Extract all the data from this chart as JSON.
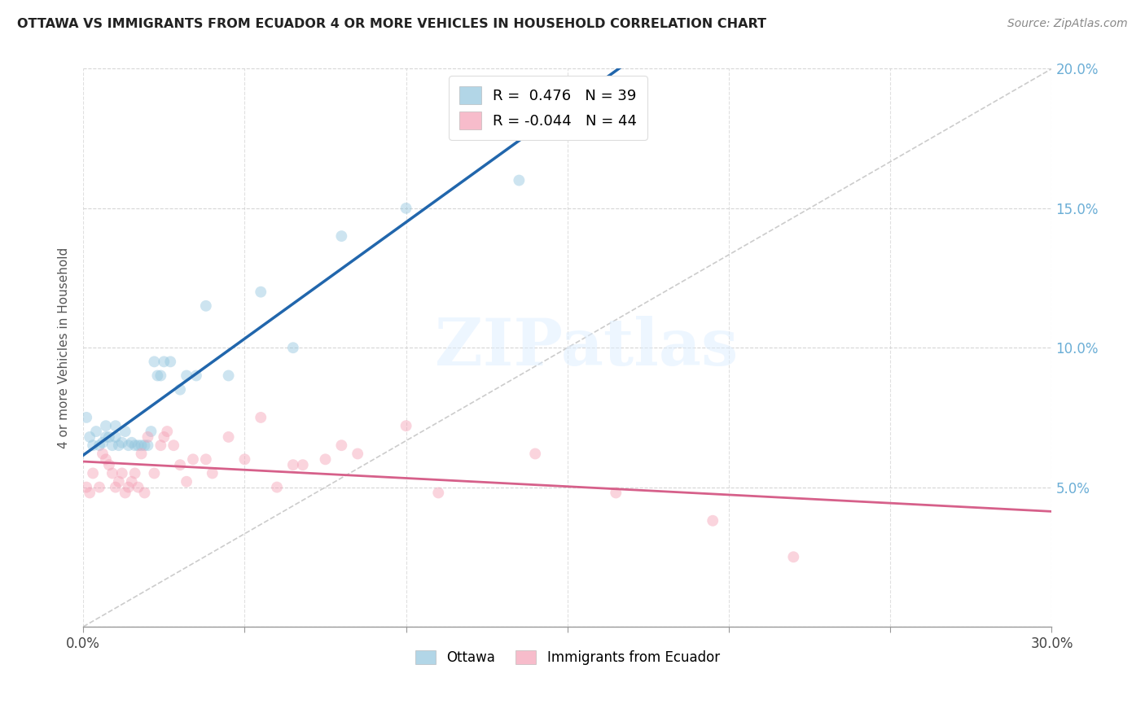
{
  "title": "OTTAWA VS IMMIGRANTS FROM ECUADOR 4 OR MORE VEHICLES IN HOUSEHOLD CORRELATION CHART",
  "source": "Source: ZipAtlas.com",
  "ylabel": "4 or more Vehicles in Household",
  "xlim": [
    0.0,
    0.3
  ],
  "ylim": [
    0.0,
    0.2
  ],
  "xtick_positions": [
    0.0,
    0.05,
    0.1,
    0.15,
    0.2,
    0.25,
    0.3
  ],
  "xtick_labels_sparse": [
    "0.0%",
    "",
    "",
    "",
    "",
    "",
    "30.0%"
  ],
  "ytick_positions": [
    0.0,
    0.05,
    0.1,
    0.15,
    0.2
  ],
  "ytick_labels_right": [
    "",
    "5.0%",
    "10.0%",
    "15.0%",
    "20.0%"
  ],
  "legend_entries": [
    {
      "label": "Ottawa",
      "color": "#92c5de",
      "R": "0.476",
      "N": "39"
    },
    {
      "label": "Immigrants from Ecuador",
      "color": "#f4a0b5",
      "R": "-0.044",
      "N": "44"
    }
  ],
  "ottawa_x": [
    0.001,
    0.002,
    0.003,
    0.004,
    0.005,
    0.006,
    0.007,
    0.007,
    0.008,
    0.009,
    0.01,
    0.01,
    0.011,
    0.012,
    0.013,
    0.014,
    0.015,
    0.016,
    0.017,
    0.018,
    0.019,
    0.02,
    0.021,
    0.022,
    0.023,
    0.024,
    0.025,
    0.027,
    0.03,
    0.032,
    0.035,
    0.038,
    0.045,
    0.055,
    0.065,
    0.08,
    0.1,
    0.135,
    0.155
  ],
  "ottawa_y": [
    0.075,
    0.068,
    0.065,
    0.07,
    0.065,
    0.066,
    0.068,
    0.072,
    0.068,
    0.065,
    0.068,
    0.072,
    0.065,
    0.066,
    0.07,
    0.065,
    0.066,
    0.065,
    0.065,
    0.065,
    0.065,
    0.065,
    0.07,
    0.095,
    0.09,
    0.09,
    0.095,
    0.095,
    0.085,
    0.09,
    0.09,
    0.115,
    0.09,
    0.12,
    0.1,
    0.14,
    0.15,
    0.16,
    0.195
  ],
  "ecuador_x": [
    0.001,
    0.002,
    0.003,
    0.005,
    0.006,
    0.007,
    0.008,
    0.009,
    0.01,
    0.011,
    0.012,
    0.013,
    0.014,
    0.015,
    0.016,
    0.017,
    0.018,
    0.019,
    0.02,
    0.022,
    0.024,
    0.025,
    0.026,
    0.028,
    0.03,
    0.032,
    0.034,
    0.038,
    0.04,
    0.045,
    0.05,
    0.055,
    0.06,
    0.065,
    0.068,
    0.075,
    0.08,
    0.085,
    0.1,
    0.11,
    0.14,
    0.165,
    0.195,
    0.22
  ],
  "ecuador_y": [
    0.05,
    0.048,
    0.055,
    0.05,
    0.062,
    0.06,
    0.058,
    0.055,
    0.05,
    0.052,
    0.055,
    0.048,
    0.05,
    0.052,
    0.055,
    0.05,
    0.062,
    0.048,
    0.068,
    0.055,
    0.065,
    0.068,
    0.07,
    0.065,
    0.058,
    0.052,
    0.06,
    0.06,
    0.055,
    0.068,
    0.06,
    0.075,
    0.05,
    0.058,
    0.058,
    0.06,
    0.065,
    0.062,
    0.072,
    0.048,
    0.062,
    0.048,
    0.038,
    0.025
  ],
  "background_color": "#ffffff",
  "grid_color": "#cccccc",
  "dot_size": 100,
  "dot_alpha": 0.45,
  "blue_color": "#92c5de",
  "pink_color": "#f4a0b5",
  "blue_line_color": "#2166ac",
  "pink_line_color": "#d6608a",
  "ref_line_color": "#cccccc",
  "watermark_text": "ZIPatlas",
  "watermark_color": "#ddeeff"
}
